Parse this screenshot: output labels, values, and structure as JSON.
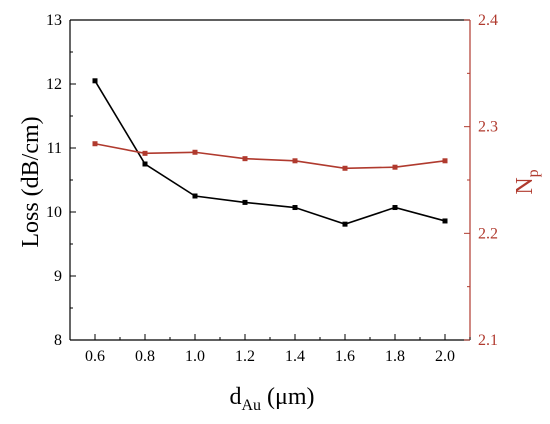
{
  "chart_data": {
    "type": "line",
    "x_label": {
      "main": "d",
      "sub": "Au",
      "rest": " (μm)"
    },
    "y_left_label": "Loss (dB/cm)",
    "y_right_label": {
      "main": "N",
      "sub": "p"
    },
    "x_ticks": [
      "0.6",
      "0.8",
      "1.0",
      "1.2",
      "1.4",
      "1.6",
      "1.8",
      "2.0"
    ],
    "y_left_ticks": [
      "8",
      "9",
      "10",
      "11",
      "12",
      "13"
    ],
    "y_right_ticks": [
      "2.1",
      "2.2",
      "2.3",
      "2.4"
    ],
    "x_range": [
      0.5,
      2.1
    ],
    "y_left_range": [
      8,
      13
    ],
    "y_right_range": [
      2.1,
      2.4
    ],
    "colors": {
      "loss": "#000000",
      "np": "#b03a2e",
      "right_axis": "#b03a2e",
      "left_axis": "#000000"
    },
    "series": [
      {
        "axis": "left",
        "x": [
          0.6,
          0.8,
          1.0,
          1.2,
          1.4,
          1.6,
          1.8,
          2.0
        ],
        "y": [
          12.05,
          10.75,
          10.25,
          10.15,
          10.07,
          9.81,
          10.07,
          9.86
        ]
      },
      {
        "axis": "right",
        "x": [
          0.6,
          0.8,
          1.0,
          1.2,
          1.4,
          1.6,
          1.8,
          2.0
        ],
        "y": [
          2.284,
          2.275,
          2.276,
          2.27,
          2.268,
          2.261,
          2.262,
          2.268
        ]
      }
    ],
    "grid": false,
    "legend": "none"
  }
}
